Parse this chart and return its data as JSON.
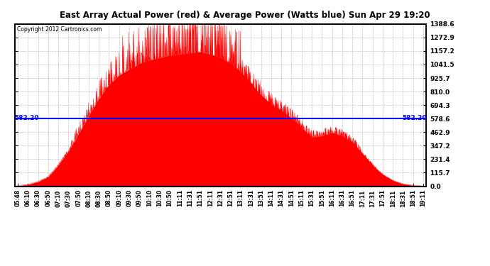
{
  "title": "East Array Actual Power (red) & Average Power (Watts blue) Sun Apr 29 19:20",
  "copyright": "Copyright 2012 Cartronics.com",
  "avg_power": 582.2,
  "ymin": 0.0,
  "ymax": 1388.6,
  "yticks": [
    0.0,
    115.7,
    231.4,
    347.2,
    462.9,
    578.6,
    694.3,
    810.0,
    925.7,
    1041.5,
    1157.2,
    1272.9,
    1388.6
  ],
  "avg_label": "582.20",
  "bg_color": "#ffffff",
  "grid_color": "#aaaaaa",
  "fill_color": "#ff0000",
  "line_color": "#0000ff",
  "xtick_labels": [
    "05:48",
    "06:10",
    "06:30",
    "06:50",
    "07:10",
    "07:30",
    "07:50",
    "08:10",
    "08:30",
    "08:50",
    "09:10",
    "09:30",
    "09:50",
    "10:10",
    "10:30",
    "10:50",
    "11:11",
    "11:31",
    "11:51",
    "12:11",
    "12:31",
    "12:51",
    "13:11",
    "13:31",
    "13:51",
    "14:11",
    "14:31",
    "14:51",
    "15:11",
    "15:31",
    "15:51",
    "16:11",
    "16:31",
    "16:51",
    "17:11",
    "17:31",
    "17:51",
    "18:11",
    "18:31",
    "18:51",
    "19:11"
  ]
}
